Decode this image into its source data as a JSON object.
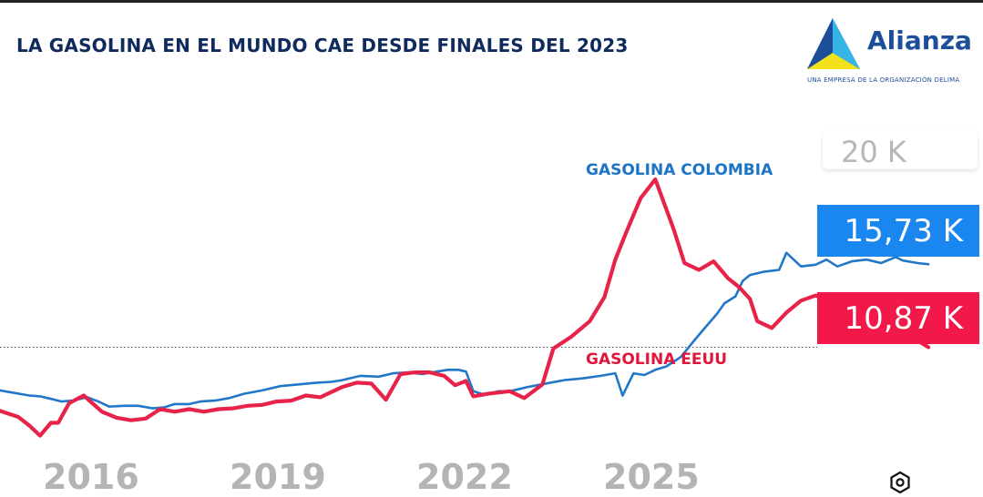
{
  "title": "LA GASOLINA EN EL MUNDO CAE DESDE FINALES DEL 2023",
  "logo": {
    "name": "Alianza",
    "tagline": "UNA EMPRESA DE LA ORGANIZACIÓN DELIMA",
    "icon": "triangle-logo-icon",
    "colors": {
      "blue": "#1a86f0",
      "navy": "#1d4e9a",
      "yellow": "#f2e11a"
    }
  },
  "settings_icon": "hexagon-gear-icon",
  "chart_data": {
    "type": "line",
    "title": "LA GASOLINA EN EL MUNDO CAE DESDE FINALES DEL 2023",
    "x_ticks": [
      "2016",
      "2019",
      "2022",
      "2025"
    ],
    "y_visible_tick": "20 K",
    "xlim": [
      2014.6,
      2028.1
    ],
    "ylim": [
      5.2,
      24.0
    ],
    "grid": false,
    "reference_line": {
      "y": 10.87,
      "style": "dotted"
    },
    "series": [
      {
        "name": "GASOLINA COLOMBIA",
        "color": "#2377c9",
        "last_value_label": "15,73 K",
        "points": [
          [
            2014.6,
            8.35
          ],
          [
            2014.8,
            8.2
          ],
          [
            2015.0,
            8.05
          ],
          [
            2015.15,
            8.0
          ],
          [
            2015.3,
            7.85
          ],
          [
            2015.45,
            7.7
          ],
          [
            2015.6,
            7.75
          ],
          [
            2015.8,
            7.95
          ],
          [
            2015.95,
            7.7
          ],
          [
            2016.1,
            7.4
          ],
          [
            2016.3,
            7.45
          ],
          [
            2016.5,
            7.45
          ],
          [
            2016.7,
            7.3
          ],
          [
            2016.85,
            7.35
          ],
          [
            2017.0,
            7.55
          ],
          [
            2017.2,
            7.55
          ],
          [
            2017.35,
            7.7
          ],
          [
            2017.55,
            7.75
          ],
          [
            2017.75,
            7.9
          ],
          [
            2017.95,
            8.15
          ],
          [
            2018.2,
            8.35
          ],
          [
            2018.45,
            8.6
          ],
          [
            2018.7,
            8.7
          ],
          [
            2018.95,
            8.8
          ],
          [
            2019.15,
            8.85
          ],
          [
            2019.3,
            8.95
          ],
          [
            2019.55,
            9.2
          ],
          [
            2019.8,
            9.15
          ],
          [
            2020.0,
            9.35
          ],
          [
            2020.2,
            9.4
          ],
          [
            2020.4,
            9.3
          ],
          [
            2020.6,
            9.45
          ],
          [
            2020.75,
            9.55
          ],
          [
            2020.9,
            9.55
          ],
          [
            2021.0,
            9.45
          ],
          [
            2021.1,
            8.3
          ],
          [
            2021.25,
            8.1
          ],
          [
            2021.45,
            8.3
          ],
          [
            2021.6,
            8.3
          ],
          [
            2021.85,
            8.55
          ],
          [
            2022.1,
            8.75
          ],
          [
            2022.35,
            8.95
          ],
          [
            2022.6,
            9.05
          ],
          [
            2022.85,
            9.2
          ],
          [
            2023.05,
            9.35
          ],
          [
            2023.15,
            8.05
          ],
          [
            2023.3,
            9.35
          ],
          [
            2023.45,
            9.25
          ],
          [
            2023.6,
            9.55
          ],
          [
            2023.75,
            9.75
          ],
          [
            2023.95,
            10.3
          ],
          [
            2024.15,
            11.35
          ],
          [
            2024.3,
            12.1
          ],
          [
            2024.45,
            12.85
          ],
          [
            2024.55,
            13.45
          ],
          [
            2024.7,
            13.85
          ],
          [
            2024.8,
            14.75
          ],
          [
            2024.9,
            15.1
          ],
          [
            2025.1,
            15.3
          ],
          [
            2025.3,
            15.4
          ],
          [
            2025.4,
            16.4
          ],
          [
            2025.6,
            15.6
          ],
          [
            2025.8,
            15.7
          ],
          [
            2025.95,
            16.0
          ],
          [
            2026.1,
            15.6
          ],
          [
            2026.3,
            15.9
          ],
          [
            2026.5,
            16.0
          ],
          [
            2026.7,
            15.8
          ],
          [
            2026.9,
            16.15
          ],
          [
            2027.0,
            15.95
          ],
          [
            2027.2,
            15.8
          ],
          [
            2027.35,
            15.73
          ]
        ]
      },
      {
        "name": "GASOLINA EEUU",
        "color": "#e8234a",
        "last_value_label": "10,87 K",
        "points": [
          [
            2014.6,
            7.15
          ],
          [
            2014.85,
            6.8
          ],
          [
            2015.0,
            6.3
          ],
          [
            2015.15,
            5.7
          ],
          [
            2015.3,
            6.45
          ],
          [
            2015.4,
            6.45
          ],
          [
            2015.55,
            7.6
          ],
          [
            2015.75,
            8.05
          ],
          [
            2016.0,
            7.1
          ],
          [
            2016.2,
            6.75
          ],
          [
            2016.4,
            6.6
          ],
          [
            2016.6,
            6.7
          ],
          [
            2016.8,
            7.25
          ],
          [
            2017.0,
            7.1
          ],
          [
            2017.2,
            7.25
          ],
          [
            2017.4,
            7.1
          ],
          [
            2017.6,
            7.25
          ],
          [
            2017.8,
            7.3
          ],
          [
            2018.0,
            7.45
          ],
          [
            2018.2,
            7.5
          ],
          [
            2018.4,
            7.7
          ],
          [
            2018.6,
            7.75
          ],
          [
            2018.8,
            8.05
          ],
          [
            2019.0,
            7.95
          ],
          [
            2019.15,
            8.25
          ],
          [
            2019.3,
            8.55
          ],
          [
            2019.5,
            8.8
          ],
          [
            2019.7,
            8.75
          ],
          [
            2019.9,
            7.8
          ],
          [
            2020.1,
            9.3
          ],
          [
            2020.3,
            9.4
          ],
          [
            2020.5,
            9.4
          ],
          [
            2020.7,
            9.2
          ],
          [
            2020.85,
            8.65
          ],
          [
            2021.0,
            8.9
          ],
          [
            2021.1,
            8.0
          ],
          [
            2021.3,
            8.15
          ],
          [
            2021.6,
            8.3
          ],
          [
            2021.8,
            7.9
          ],
          [
            2022.05,
            8.7
          ],
          [
            2022.2,
            10.8
          ],
          [
            2022.45,
            11.5
          ],
          [
            2022.7,
            12.4
          ],
          [
            2022.9,
            13.8
          ],
          [
            2023.05,
            16.0
          ],
          [
            2023.2,
            17.6
          ],
          [
            2023.4,
            19.6
          ],
          [
            2023.6,
            20.7
          ],
          [
            2023.85,
            17.8
          ],
          [
            2024.0,
            15.8
          ],
          [
            2024.2,
            15.4
          ],
          [
            2024.4,
            15.9
          ],
          [
            2024.6,
            14.9
          ],
          [
            2024.75,
            14.4
          ],
          [
            2024.9,
            13.7
          ],
          [
            2025.0,
            12.4
          ],
          [
            2025.2,
            12.0
          ],
          [
            2025.4,
            12.9
          ],
          [
            2025.6,
            13.6
          ],
          [
            2025.8,
            13.9
          ],
          [
            2026.0,
            13.6
          ],
          [
            2026.2,
            13.2
          ],
          [
            2026.4,
            12.7
          ],
          [
            2026.6,
            12.5
          ],
          [
            2026.75,
            12.8
          ],
          [
            2026.95,
            12.3
          ],
          [
            2027.15,
            11.4
          ],
          [
            2027.35,
            10.87
          ]
        ]
      }
    ]
  }
}
